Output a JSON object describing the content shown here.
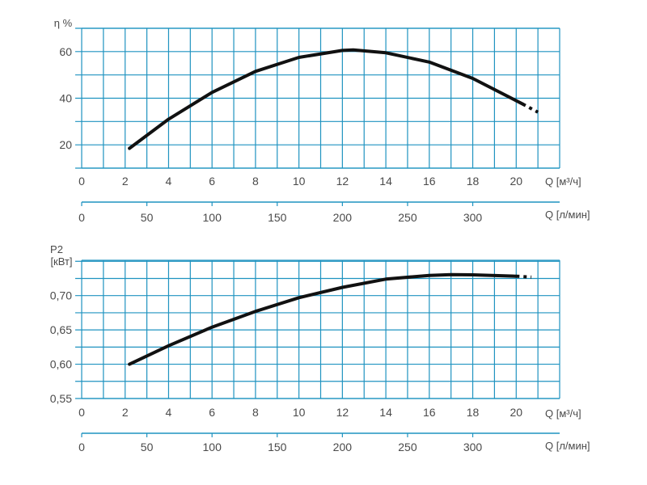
{
  "chart_data": [
    {
      "type": "line",
      "ylabel": "η %",
      "yticks": [
        20,
        40,
        60
      ],
      "ylim": [
        10,
        70
      ],
      "xlim": [
        0,
        22
      ],
      "xticks": [
        0,
        2,
        4,
        6,
        8,
        10,
        12,
        14,
        16,
        18,
        20
      ],
      "xlabel": "Q [м³/ч]",
      "secondary_xlabel": "Q [л/мин]",
      "secondary_xticks": [
        "0",
        "50",
        "100",
        "150",
        "200",
        "250",
        "300"
      ],
      "grid": true,
      "series": [
        {
          "x": [
            2.2,
            4,
            6,
            8,
            10,
            12,
            12.5,
            14,
            16,
            18,
            20.3
          ],
          "y": [
            18.5,
            31,
            42.5,
            51.5,
            57.5,
            60.5,
            60.7,
            59.5,
            55.5,
            48.5,
            37.5
          ]
        }
      ],
      "dashed_tail": {
        "x": [
          20.3,
          21
        ],
        "y": [
          37.5,
          34
        ]
      }
    },
    {
      "type": "line",
      "ylabel": "P2",
      "ylabel2": "[кВт]",
      "yticks": [
        "0,55",
        "0,60",
        "0,65",
        "0,70"
      ],
      "yticks_values": [
        0.55,
        0.6,
        0.65,
        0.7
      ],
      "ylim": [
        0.55,
        0.7515
      ],
      "xlim": [
        0,
        22
      ],
      "xticks": [
        0,
        2,
        4,
        6,
        8,
        10,
        12,
        14,
        16,
        18,
        20
      ],
      "xlabel": "Q [м³/ч]",
      "secondary_xlabel": "Q [л/мин]",
      "secondary_xticks": [
        "0",
        "50",
        "100",
        "150",
        "200",
        "250",
        "300"
      ],
      "grid": true,
      "series": [
        {
          "x": [
            2.2,
            4,
            6,
            8,
            10,
            12,
            14,
            16,
            17,
            18,
            20
          ],
          "y": [
            0.6,
            0.627,
            0.654,
            0.677,
            0.697,
            0.712,
            0.724,
            0.7295,
            0.7305,
            0.7303,
            0.7283
          ]
        }
      ],
      "dashed_tail": {
        "x": [
          20,
          20.7
        ],
        "y": [
          0.7283,
          0.727
        ]
      }
    }
  ],
  "colors": {
    "grid": "#1f93c0",
    "curve": "#111111",
    "text": "#4a4a4a"
  }
}
